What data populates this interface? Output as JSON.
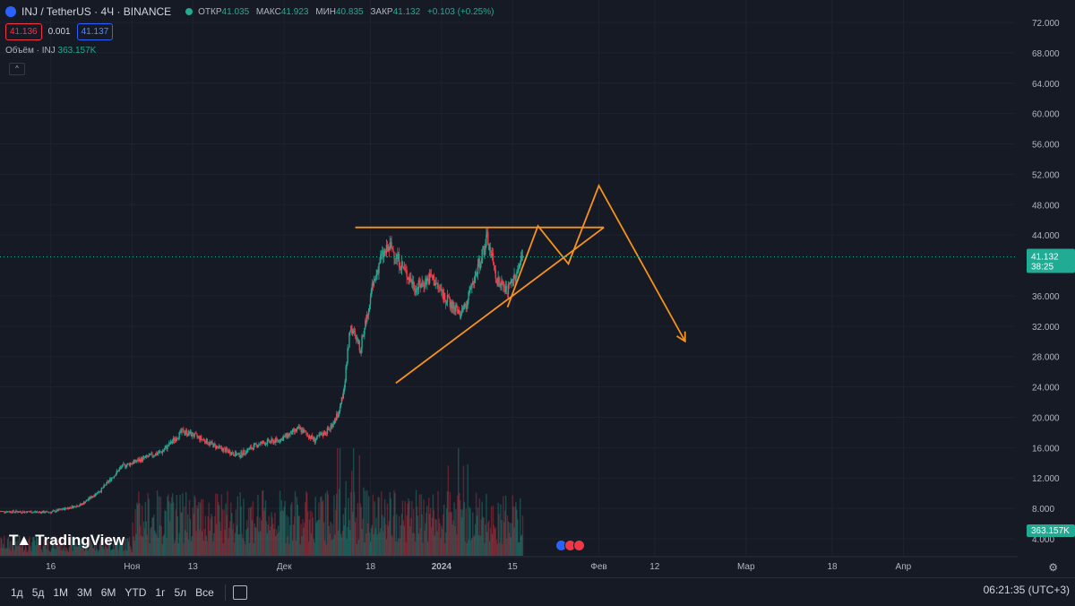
{
  "header": {
    "symbol": "INJ / TetherUS · 4Ч · BINANCE",
    "open_label": "ОТКР",
    "open": "41.035",
    "high_label": "МАКС",
    "high": "41.923",
    "low_label": "МИН",
    "low": "40.835",
    "close_label": "ЗАКР",
    "close": "41.132",
    "change": "+0.103 (+0.25%)"
  },
  "quote": {
    "bid": "41.136",
    "spread": "0.001",
    "ask": "41.137"
  },
  "volume": {
    "label": "Объём · INJ",
    "value": "363.157K"
  },
  "price_axis": {
    "ticks": [
      "72.000",
      "68.000",
      "64.000",
      "60.000",
      "56.000",
      "52.000",
      "48.000",
      "44.000",
      "36.000",
      "32.000",
      "28.000",
      "24.000",
      "20.000",
      "16.000",
      "12.000",
      "8.000",
      "4.000"
    ],
    "last_price": "41.132",
    "countdown": "38:25",
    "volume_tag": "363.157K"
  },
  "time_axis": {
    "ticks": [
      "16",
      "Ноя",
      "13",
      "Дек",
      "18",
      "2024",
      "15",
      "Фев",
      "12",
      "Мар",
      "18",
      "Апр"
    ]
  },
  "branding": {
    "logo_text": "TradingView"
  },
  "bottom_bar": {
    "timeframes": [
      "1д",
      "5д",
      "1М",
      "3М",
      "6М",
      "YTD",
      "1г",
      "5л",
      "Все"
    ],
    "clock": "06:21:35 (UTC+3)"
  },
  "colors": {
    "up": "#22ab94",
    "down": "#f23645",
    "drawing": "#f7931a",
    "background": "#161a25"
  },
  "chart_data": {
    "type": "candlestick",
    "title": "INJ / TetherUS · 4Ч · BINANCE",
    "ylim": [
      2,
      74
    ],
    "x_range": [
      "Oct 6 2023",
      "Apr 26 2024"
    ],
    "price_path": [
      {
        "date": "2023-10-06",
        "price": 7.6
      },
      {
        "date": "2023-10-16",
        "price": 7.5
      },
      {
        "date": "2023-10-22",
        "price": 8.5
      },
      {
        "date": "2023-10-26",
        "price": 10.5
      },
      {
        "date": "2023-10-30",
        "price": 13.5
      },
      {
        "date": "2023-11-03",
        "price": 14.5
      },
      {
        "date": "2023-11-07",
        "price": 15.5
      },
      {
        "date": "2023-11-11",
        "price": 18.2
      },
      {
        "date": "2023-11-14",
        "price": 17.4
      },
      {
        "date": "2023-11-18",
        "price": 16.0
      },
      {
        "date": "2023-11-22",
        "price": 15.0
      },
      {
        "date": "2023-11-26",
        "price": 16.5
      },
      {
        "date": "2023-11-30",
        "price": 17.0
      },
      {
        "date": "2023-12-04",
        "price": 18.5
      },
      {
        "date": "2023-12-07",
        "price": 17.0
      },
      {
        "date": "2023-12-10",
        "price": 18.5
      },
      {
        "date": "2023-12-12",
        "price": 21.0
      },
      {
        "date": "2023-12-13",
        "price": 25.0
      },
      {
        "date": "2023-12-14",
        "price": 32.0
      },
      {
        "date": "2023-12-16",
        "price": 29.0
      },
      {
        "date": "2023-12-18",
        "price": 36.0
      },
      {
        "date": "2023-12-20",
        "price": 41.0
      },
      {
        "date": "2023-12-22",
        "price": 42.5
      },
      {
        "date": "2023-12-25",
        "price": 39.0
      },
      {
        "date": "2023-12-27",
        "price": 37.0
      },
      {
        "date": "2023-12-30",
        "price": 38.5
      },
      {
        "date": "2024-01-02",
        "price": 35.5
      },
      {
        "date": "2024-01-05",
        "price": 33.5
      },
      {
        "date": "2024-01-07",
        "price": 37.0
      },
      {
        "date": "2024-01-09",
        "price": 41.5
      },
      {
        "date": "2024-01-10",
        "price": 43.5
      },
      {
        "date": "2024-01-12",
        "price": 38.0
      },
      {
        "date": "2024-01-14",
        "price": 36.5
      },
      {
        "date": "2024-01-16",
        "price": 39.5
      },
      {
        "date": "2024-01-17",
        "price": 41.1
      }
    ],
    "drawings": {
      "resistance_line": {
        "from": {
          "date": "2023-12-15",
          "price": 45.0
        },
        "to": {
          "date": "2024-02-02",
          "price": 45.0
        }
      },
      "support_line": {
        "from": {
          "date": "2023-12-23",
          "price": 24.5
        },
        "to": {
          "date": "2024-02-02",
          "price": 45.0
        }
      },
      "projection_path": [
        {
          "date": "2024-01-14",
          "price": 34.5
        },
        {
          "date": "2024-01-20",
          "price": 45.2
        },
        {
          "date": "2024-01-26",
          "price": 40.2
        },
        {
          "date": "2024-02-01",
          "price": 50.5
        },
        {
          "date": "2024-02-18",
          "price": 30.0
        }
      ]
    }
  }
}
